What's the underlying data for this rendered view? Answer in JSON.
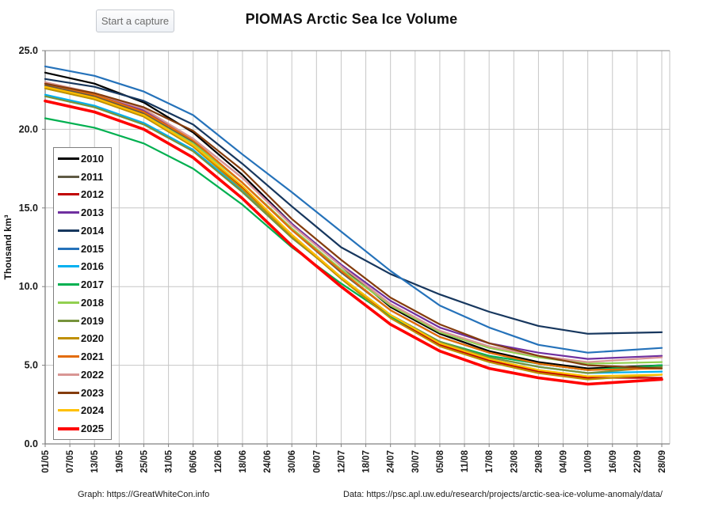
{
  "header": {
    "button_label": "Start a capture",
    "title": "PIOMAS Arctic Sea Ice Volume"
  },
  "footer": {
    "graph_credit": "Graph: https://GreatWhiteCon.info",
    "data_credit": "Data: https://psc.apl.uw.edu/research/projects/arctic-sea-ice-volume-anomaly/data/"
  },
  "chart_data": {
    "type": "line",
    "title": "PIOMAS Arctic Sea Ice Volume",
    "xlabel": "",
    "ylabel": "Thousand km³",
    "ylim": [
      0,
      25
    ],
    "ytick_step": 5,
    "ytick_values": [
      0,
      5,
      10,
      15,
      20,
      25
    ],
    "ytick_labels": [
      "0.0",
      "5.0",
      "10.0",
      "15.0",
      "20.0",
      "25.0"
    ],
    "grid": true,
    "legend_position": "inside-left",
    "x_tick_labels": [
      "01/05",
      "07/05",
      "13/05",
      "19/05",
      "25/05",
      "31/05",
      "06/06",
      "12/06",
      "18/06",
      "24/06",
      "30/06",
      "06/07",
      "12/07",
      "18/07",
      "24/07",
      "30/07",
      "05/08",
      "11/08",
      "17/08",
      "23/08",
      "29/08",
      "04/09",
      "10/09",
      "16/09",
      "22/09",
      "28/09"
    ],
    "x_tick_days": [
      0,
      6,
      12,
      18,
      24,
      30,
      36,
      42,
      48,
      54,
      60,
      66,
      72,
      78,
      84,
      90,
      96,
      102,
      108,
      114,
      120,
      126,
      132,
      138,
      144,
      150
    ],
    "anchor_dates": [
      "01/05",
      "13/05",
      "25/05",
      "06/06",
      "18/06",
      "30/06",
      "12/07",
      "24/07",
      "05/08",
      "17/08",
      "29/08",
      "10/09",
      "28/09"
    ],
    "anchor_days": [
      0,
      12,
      24,
      36,
      48,
      60,
      72,
      84,
      96,
      108,
      120,
      132,
      150
    ],
    "series": [
      {
        "name": "2010",
        "color": "#000000",
        "width": 2.2,
        "values": [
          23.6,
          22.9,
          21.7,
          19.8,
          17.1,
          14.0,
          11.3,
          8.7,
          7.0,
          5.9,
          5.2,
          4.8,
          5.0
        ]
      },
      {
        "name": "2011",
        "color": "#5F5A44",
        "width": 2.2,
        "values": [
          22.8,
          22.1,
          21.0,
          19.2,
          16.6,
          13.6,
          10.9,
          8.5,
          6.8,
          5.8,
          5.1,
          4.7,
          4.9
        ]
      },
      {
        "name": "2012",
        "color": "#C00000",
        "width": 2.2,
        "values": [
          22.7,
          22.0,
          20.9,
          19.0,
          16.3,
          13.3,
          10.6,
          8.1,
          6.3,
          5.3,
          4.6,
          4.2,
          4.2
        ]
      },
      {
        "name": "2013",
        "color": "#7030A0",
        "width": 2.2,
        "values": [
          22.9,
          22.2,
          21.2,
          19.4,
          16.9,
          14.0,
          11.4,
          9.1,
          7.4,
          6.4,
          5.8,
          5.4,
          5.6
        ]
      },
      {
        "name": "2014",
        "color": "#17375E",
        "width": 2.2,
        "values": [
          23.2,
          22.7,
          21.8,
          20.3,
          17.8,
          15.1,
          12.5,
          10.8,
          9.5,
          8.4,
          7.5,
          7.0,
          7.1
        ]
      },
      {
        "name": "2015",
        "color": "#2572BA",
        "width": 2.2,
        "values": [
          24.0,
          23.4,
          22.4,
          20.9,
          18.4,
          16.0,
          13.5,
          11.0,
          8.8,
          7.4,
          6.3,
          5.8,
          6.1
        ]
      },
      {
        "name": "2016",
        "color": "#00B0F0",
        "width": 2.2,
        "values": [
          22.2,
          21.5,
          20.4,
          18.7,
          16.1,
          13.2,
          10.6,
          8.2,
          6.5,
          5.5,
          4.9,
          4.5,
          4.6
        ]
      },
      {
        "name": "2017",
        "color": "#00B050",
        "width": 2.2,
        "values": [
          20.7,
          20.1,
          19.1,
          17.5,
          15.2,
          12.5,
          10.2,
          8.1,
          6.5,
          5.6,
          5.1,
          4.7,
          5.0
        ]
      },
      {
        "name": "2018",
        "color": "#92D050",
        "width": 2.2,
        "values": [
          22.6,
          21.9,
          20.9,
          19.1,
          16.6,
          13.7,
          11.1,
          8.8,
          7.1,
          6.1,
          5.5,
          5.1,
          5.2
        ]
      },
      {
        "name": "2019",
        "color": "#76933C",
        "width": 2.2,
        "values": [
          22.1,
          21.4,
          20.3,
          18.6,
          16.0,
          13.1,
          10.6,
          8.2,
          6.5,
          5.5,
          4.9,
          4.5,
          4.9
        ]
      },
      {
        "name": "2020",
        "color": "#BF8F00",
        "width": 2.2,
        "values": [
          22.6,
          21.9,
          20.8,
          18.9,
          16.2,
          13.2,
          10.5,
          8.0,
          6.2,
          5.2,
          4.5,
          4.1,
          4.4
        ]
      },
      {
        "name": "2021",
        "color": "#E36C09",
        "width": 2.2,
        "values": [
          22.9,
          22.2,
          21.1,
          19.3,
          16.6,
          13.6,
          11.0,
          8.5,
          6.8,
          5.8,
          5.1,
          4.7,
          4.8
        ]
      },
      {
        "name": "2022",
        "color": "#D99694",
        "width": 2.2,
        "values": [
          23.0,
          22.3,
          21.3,
          19.4,
          16.9,
          13.9,
          11.3,
          8.9,
          7.2,
          6.2,
          5.6,
          5.2,
          5.5
        ]
      },
      {
        "name": "2023",
        "color": "#843C0C",
        "width": 2.2,
        "values": [
          22.9,
          22.3,
          21.4,
          19.9,
          17.4,
          14.3,
          11.7,
          9.3,
          7.6,
          6.4,
          5.6,
          5.0,
          4.8
        ]
      },
      {
        "name": "2024",
        "color": "#FFC000",
        "width": 2.2,
        "values": [
          22.7,
          22.0,
          20.9,
          19.0,
          16.4,
          13.3,
          10.6,
          8.2,
          6.4,
          5.4,
          4.7,
          4.3,
          4.4
        ]
      },
      {
        "name": "2025",
        "color": "#FF0000",
        "width": 3.6,
        "values": [
          21.8,
          21.1,
          20.0,
          18.2,
          15.6,
          12.6,
          10.0,
          7.6,
          5.9,
          4.8,
          4.2,
          3.8,
          4.1
        ]
      }
    ],
    "style": {
      "grid_color": "#c6c6c6",
      "frame_color": "#a0a0a0",
      "axis_color": "#808080",
      "tick_label_color": "#1a1a1a"
    }
  }
}
